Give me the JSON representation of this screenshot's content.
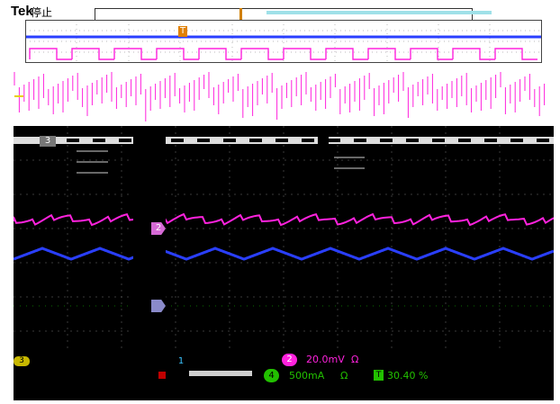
{
  "header": {
    "brand": "Tek",
    "acq_state": "停止"
  },
  "status_bar": {
    "ch2_scale": "20.0mV",
    "ch2_bw": "Ω",
    "ch4_scale": "500mA",
    "ch4_bw": "Ω",
    "trigger_level": "30.40 %",
    "ch2_badge": "2",
    "ch4_badge": "4",
    "ch3_badge": "3",
    "ch1_badge": "1"
  },
  "markers": {
    "trigger_T": "T",
    "ch2_marker": "2",
    "ch3_marker": "3"
  },
  "colors": {
    "background": "#000000",
    "ch1_blue": "#2a3fff",
    "ch2_magenta": "#ff22dd",
    "ch3_yellow": "#e8d000",
    "ch4_green": "#22c000",
    "trigger_orange": "#e08000",
    "grid": "#555555"
  }
}
